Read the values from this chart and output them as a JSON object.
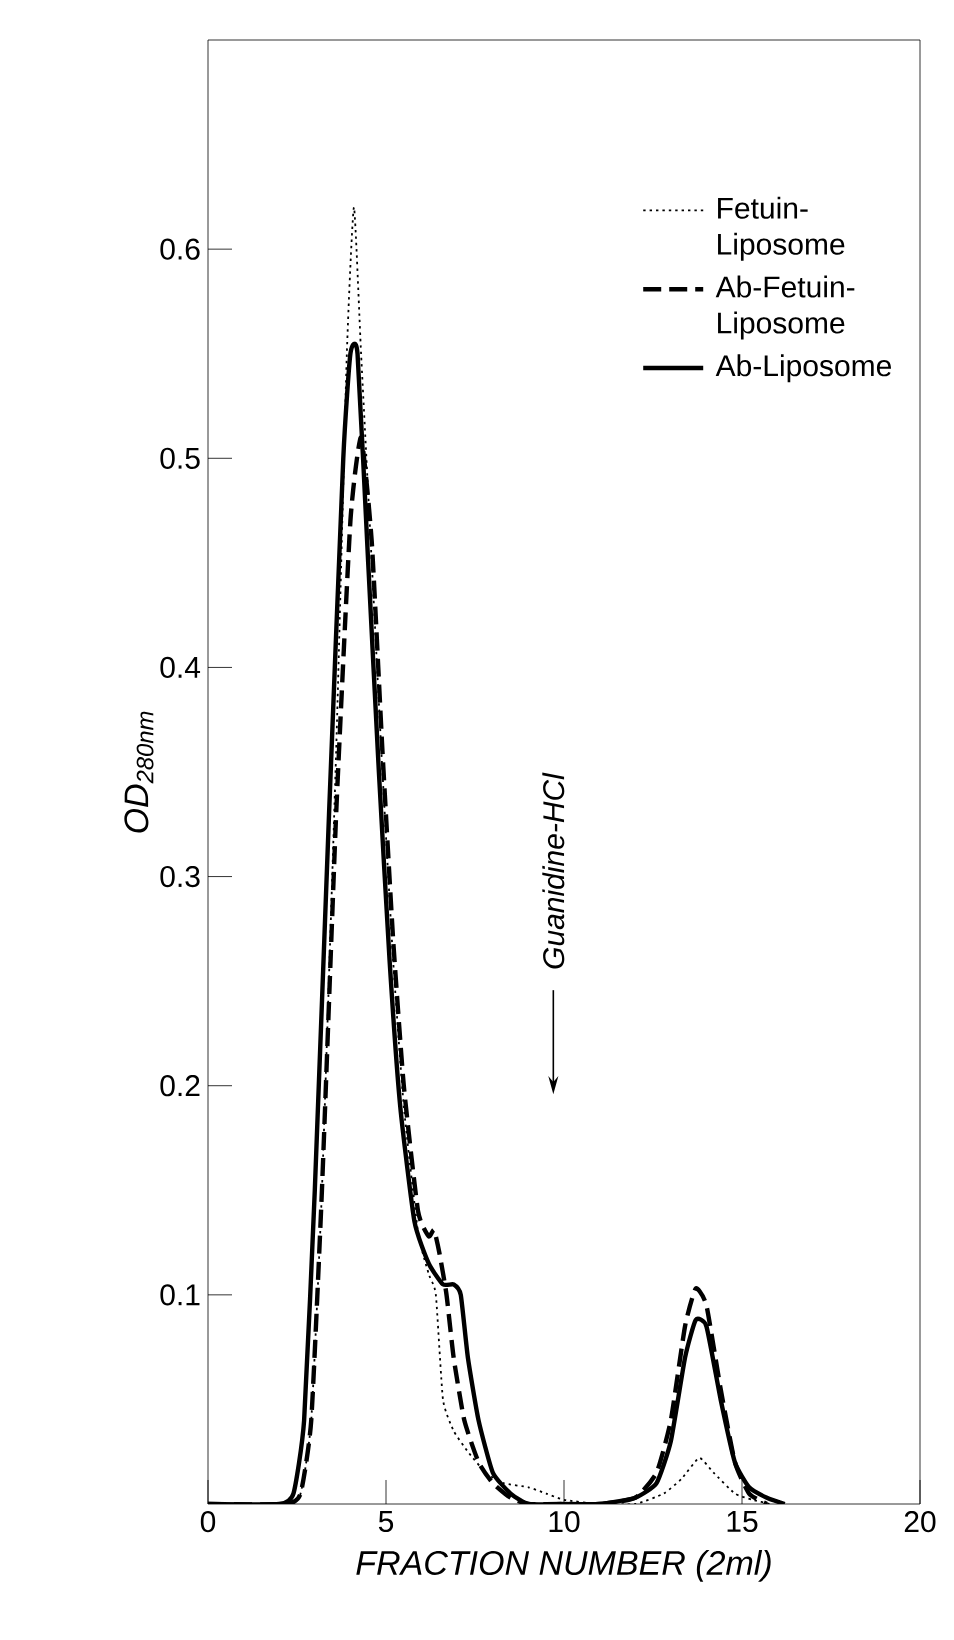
{
  "chart_data": {
    "type": "line",
    "xlabel": "FRACTION NUMBER (2ml)",
    "ylabel": "OD$_{280nm}$",
    "xlim": [
      0,
      20
    ],
    "xticks": [
      0,
      5,
      10,
      15,
      20
    ],
    "ylim": [
      0,
      0.7
    ],
    "yticks": [
      0.1,
      0.2,
      0.3,
      0.4,
      0.5,
      0.6
    ],
    "legend": "top right",
    "grid": false,
    "marker": "none",
    "annotations": [
      "Guanidine-HCl"
    ],
    "series": [
      {
        "name": "Fetuin-Liposome",
        "color": "#000000",
        "line_style": "dotted",
        "x": [
          0,
          2.2,
          2.6,
          2.9,
          3.2,
          3.6,
          3.9,
          4.1,
          4.3,
          4.6,
          4.9,
          5.2,
          5.5,
          5.9,
          6.2,
          6.4,
          6.6,
          6.9,
          7.3,
          7.8,
          8.3,
          9.0,
          9.5,
          10,
          11,
          12,
          12.8,
          13.3,
          13.8,
          14.2,
          14.8,
          15.3,
          15.8
        ],
        "values": [
          0,
          0,
          0.005,
          0.04,
          0.15,
          0.36,
          0.55,
          0.62,
          0.55,
          0.45,
          0.35,
          0.26,
          0.19,
          0.13,
          0.11,
          0.1,
          0.05,
          0.035,
          0.025,
          0.015,
          0.01,
          0.008,
          0.005,
          0.002,
          0,
          0,
          0.005,
          0.012,
          0.022,
          0.015,
          0.005,
          0.002,
          0
        ]
      },
      {
        "name": "Ab-Fetuin-Liposome",
        "color": "#000000",
        "line_style": "dashed",
        "x": [
          0,
          2.2,
          2.6,
          2.9,
          3.2,
          3.6,
          4.0,
          4.3,
          4.6,
          4.9,
          5.2,
          5.5,
          5.9,
          6.2,
          6.35,
          6.5,
          6.7,
          6.9,
          7.2,
          7.6,
          8.0,
          8.5,
          9.0,
          10,
          11,
          12,
          12.6,
          13.0,
          13.4,
          13.7,
          14.0,
          14.4,
          14.8,
          15.2,
          15.7
        ],
        "values": [
          0,
          0,
          0.005,
          0.04,
          0.15,
          0.33,
          0.47,
          0.51,
          0.46,
          0.36,
          0.27,
          0.2,
          0.14,
          0.128,
          0.131,
          0.12,
          0.1,
          0.07,
          0.04,
          0.02,
          0.01,
          0.003,
          0,
          0,
          0,
          0.003,
          0.015,
          0.04,
          0.085,
          0.103,
          0.095,
          0.055,
          0.02,
          0.005,
          0
        ]
      },
      {
        "name": "Ab-Liposome",
        "color": "#000000",
        "line_style": "solid",
        "x": [
          0,
          2.0,
          2.4,
          2.7,
          3.0,
          3.4,
          3.8,
          4.0,
          4.2,
          4.5,
          4.8,
          5.1,
          5.4,
          5.8,
          6.2,
          6.6,
          6.9,
          7.1,
          7.3,
          7.6,
          8.0,
          8.5,
          9.0,
          10,
          11,
          12,
          12.6,
          13.0,
          13.4,
          13.7,
          14.0,
          14.4,
          14.8,
          15.2,
          15.7,
          16.2
        ],
        "values": [
          0,
          0,
          0.005,
          0.04,
          0.15,
          0.33,
          0.5,
          0.55,
          0.55,
          0.45,
          0.35,
          0.26,
          0.19,
          0.135,
          0.115,
          0.105,
          0.105,
          0.1,
          0.07,
          0.04,
          0.015,
          0.005,
          0,
          0,
          0,
          0.003,
          0.01,
          0.03,
          0.07,
          0.088,
          0.085,
          0.05,
          0.02,
          0.008,
          0.003,
          0
        ]
      }
    ]
  }
}
